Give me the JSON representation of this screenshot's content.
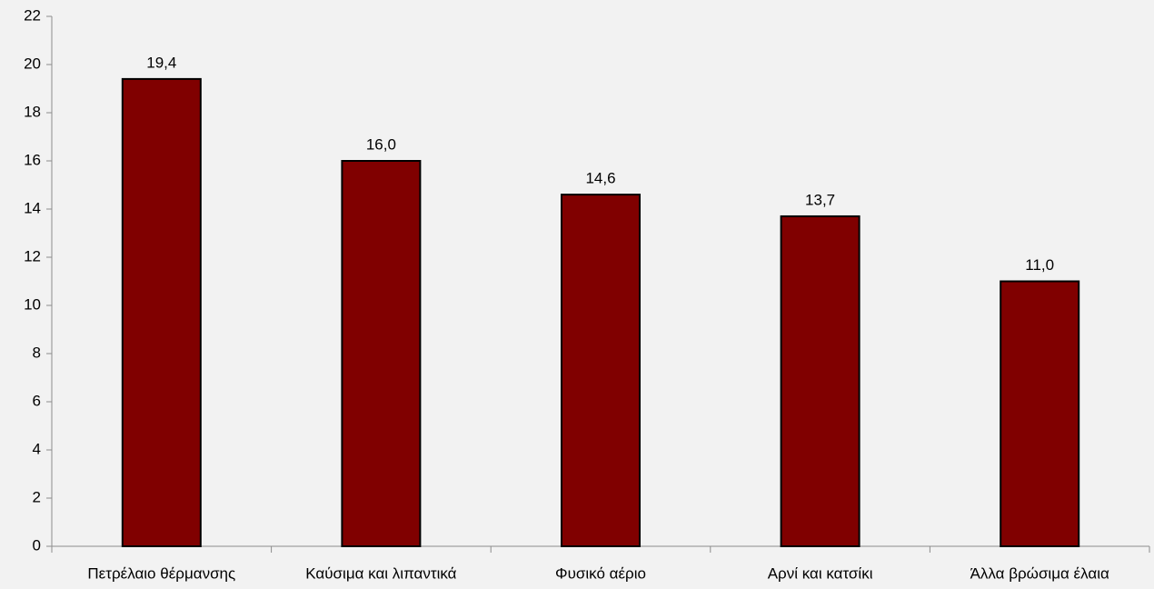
{
  "chart_data": {
    "type": "bar",
    "categories": [
      "Πετρέλαιο θέρμανσης",
      "Καύσιμα και λιπαντικά",
      "Φυσικό αέριο",
      "Αρνί και κατσίκι",
      "Άλλα βρώσιμα έλαια"
    ],
    "values": [
      19.4,
      16.0,
      14.6,
      13.7,
      11.0
    ],
    "value_labels": [
      "19,4",
      "16,0",
      "14,6",
      "13,7",
      "11,0"
    ],
    "color": "#800000",
    "ylim": [
      0,
      22
    ],
    "yticks": [
      0,
      2,
      4,
      6,
      8,
      10,
      12,
      14,
      16,
      18,
      20,
      22
    ],
    "grid": false
  }
}
